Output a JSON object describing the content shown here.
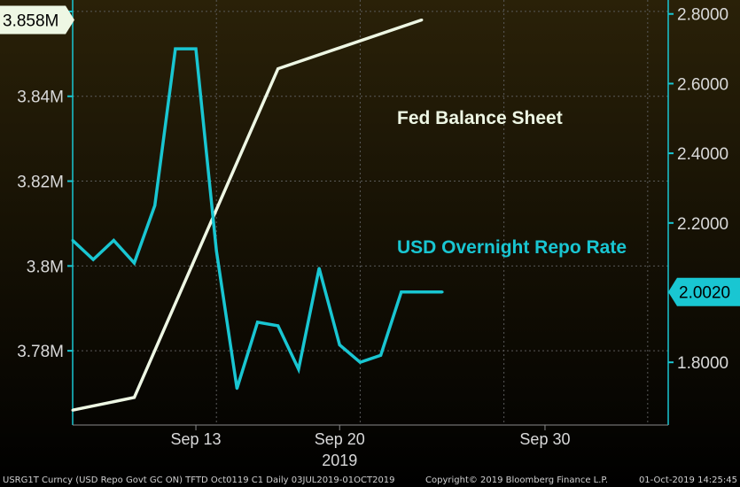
{
  "chart_data": {
    "type": "line",
    "x_range": [
      "2019-09-07",
      "2019-10-06"
    ],
    "x_ticks": [
      {
        "date": "2019-09-13",
        "label": "Sep 13"
      },
      {
        "date": "2019-09-20",
        "label": "Sep 20"
      },
      {
        "date": "2019-09-30",
        "label": "Sep 30"
      }
    ],
    "x_year_label": "2019",
    "y_left": {
      "range": [
        3.7625,
        3.8627
      ],
      "ticks": [
        {
          "value": 3.78,
          "label": "3.78M"
        },
        {
          "value": 3.8,
          "label": "3.8M"
        },
        {
          "value": 3.82,
          "label": "3.82M"
        },
        {
          "value": 3.84,
          "label": "3.84M"
        },
        {
          "value": 3.86,
          "label": "3.86M"
        }
      ]
    },
    "y_right": {
      "range": [
        1.62,
        2.84
      ],
      "ticks": [
        {
          "value": 1.8,
          "label": "1.8000"
        },
        {
          "value": 2.0,
          "label": "2.0000"
        },
        {
          "value": 2.2,
          "label": "2.2000"
        },
        {
          "value": 2.4,
          "label": "2.4000"
        },
        {
          "value": 2.6,
          "label": "2.6000"
        },
        {
          "value": 2.8,
          "label": "2.8000"
        }
      ]
    },
    "series": [
      {
        "name": "Fed Balance Sheet",
        "axis": "left",
        "color": "#eef7e4",
        "last_value_label": "3.858M",
        "points": [
          {
            "x": "2019-09-07",
            "y": 3.766
          },
          {
            "x": "2019-09-10",
            "y": 3.769
          },
          {
            "x": "2019-09-17",
            "y": 3.8465
          },
          {
            "x": "2019-09-24",
            "y": 3.858
          }
        ]
      },
      {
        "name": "USD Overnight Repo Rate",
        "axis": "right",
        "color": "#19c6d2",
        "last_value_label": "2.0020",
        "points": [
          {
            "x": "2019-09-07",
            "y": 2.15
          },
          {
            "x": "2019-09-08",
            "y": 2.095
          },
          {
            "x": "2019-09-09",
            "y": 2.15
          },
          {
            "x": "2019-09-10",
            "y": 2.085
          },
          {
            "x": "2019-09-11",
            "y": 2.25
          },
          {
            "x": "2019-09-12",
            "y": 2.7
          },
          {
            "x": "2019-09-13",
            "y": 2.7
          },
          {
            "x": "2019-09-14",
            "y": 2.12
          },
          {
            "x": "2019-09-15",
            "y": 1.725
          },
          {
            "x": "2019-09-16",
            "y": 1.915
          },
          {
            "x": "2019-09-17",
            "y": 1.905
          },
          {
            "x": "2019-09-18",
            "y": 1.78
          },
          {
            "x": "2019-09-19",
            "y": 2.07
          },
          {
            "x": "2019-09-20",
            "y": 1.85
          },
          {
            "x": "2019-09-21",
            "y": 1.8
          },
          {
            "x": "2019-09-22",
            "y": 1.82
          },
          {
            "x": "2019-09-23",
            "y": 2.002
          },
          {
            "x": "2019-09-24",
            "y": 2.002
          },
          {
            "x": "2019-09-25",
            "y": 2.002
          }
        ]
      }
    ],
    "grid": true,
    "background": "#000000"
  },
  "footer": {
    "left": "USRG1T Curncy (USD Repo Govt GC ON) TFTD Oct0119 C1  Daily 03JUL2019-01OCT2019",
    "center": "Copyright© 2019 Bloomberg Finance L.P.",
    "right": "01-Oct-2019 14:25:45"
  }
}
